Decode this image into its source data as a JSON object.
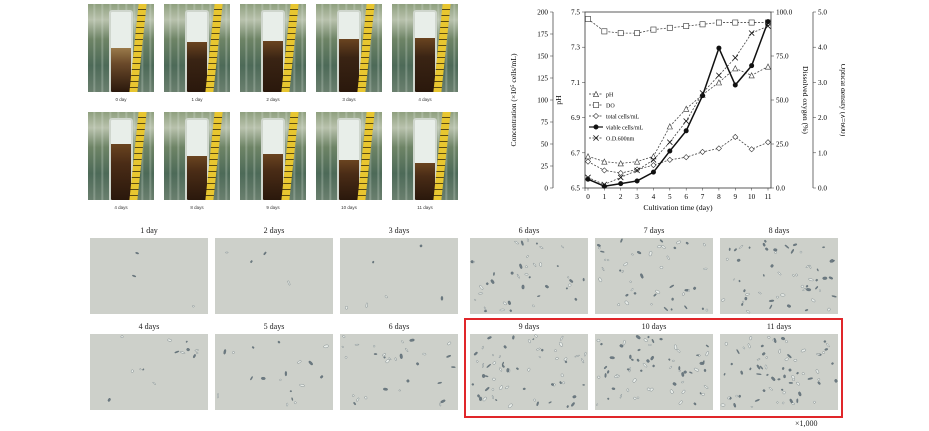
{
  "photos": {
    "row1": [
      "0 day",
      "1 day",
      "2 days",
      "3 days",
      "4 days"
    ],
    "row2": [
      "4 days",
      "8 days",
      "9 days",
      "10 days",
      "11 days"
    ]
  },
  "chart_data": {
    "type": "line",
    "x_label": "Cultivation time (day)",
    "x": [
      0,
      1,
      2,
      3,
      4,
      5,
      6,
      7,
      8,
      9,
      10,
      11
    ],
    "y_left_outer_label": "Concentration (×10⁵ cells/mL)",
    "y_left_outer_ticks": [
      "0",
      "25",
      "50",
      "75",
      "100",
      "125",
      "150",
      "175",
      "200"
    ],
    "y_left_inner_label": "pH",
    "y_left_inner_ticks": [
      "6.5",
      "6.7",
      "6.9",
      "7.1",
      "7.3",
      "7.5"
    ],
    "y_right_inner_label": "Dissolved oxygen (%)",
    "y_right_inner_ticks": [
      "0.0",
      "25.0",
      "50.0",
      "75.0",
      "100.0"
    ],
    "y_right_outer_label": "Optical density (λ=600)",
    "y_right_outer_ticks": [
      "0.0",
      "1.0",
      "2.0",
      "3.0",
      "4.0",
      "5.0"
    ],
    "series": [
      {
        "name": "pH",
        "axis": "pH",
        "marker": "triangle",
        "dash": true,
        "values": [
          6.68,
          6.65,
          6.64,
          6.65,
          6.68,
          6.85,
          6.95,
          7.03,
          7.1,
          7.18,
          7.14,
          7.19
        ]
      },
      {
        "name": "DO",
        "axis": "DO",
        "marker": "square",
        "dash": true,
        "values": [
          96,
          89,
          88,
          88,
          90,
          91,
          92,
          93,
          94,
          94,
          94,
          94
        ]
      },
      {
        "name": "total cells/mL",
        "axis": "conc",
        "marker": "diamond",
        "dash": true,
        "values": [
          30,
          20,
          17,
          21,
          26,
          32,
          35,
          41,
          45,
          58,
          44,
          52
        ]
      },
      {
        "name": "viable cells/mL",
        "axis": "conc",
        "marker": "circle",
        "dash": false,
        "values": [
          10,
          2,
          5,
          8,
          18,
          42,
          65,
          105,
          159,
          117,
          139,
          189
        ]
      },
      {
        "name": "O.D.600nm",
        "axis": "od",
        "marker": "cross",
        "dash": true,
        "values": [
          0.3,
          0.1,
          0.3,
          0.5,
          0.8,
          1.3,
          1.9,
          2.7,
          3.2,
          3.7,
          4.4,
          4.6
        ]
      }
    ]
  },
  "micrographs": {
    "left_top": [
      "1 day",
      "2 days",
      "3 days"
    ],
    "left_bottom": [
      "4 days",
      "5 days",
      "6 days"
    ],
    "right_top": [
      "6 days",
      "7 days",
      "8 days"
    ],
    "right_bottom": [
      "9 days",
      "10 days",
      "11 days"
    ],
    "magnification": "×1,000"
  },
  "colors": {
    "highlight": "#e0262a"
  }
}
